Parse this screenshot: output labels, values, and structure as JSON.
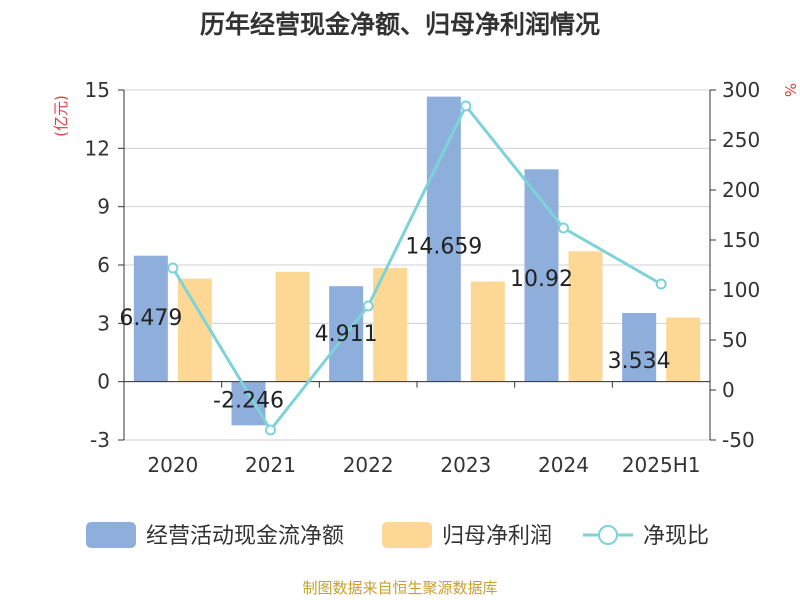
{
  "chart_data": {
    "type": "bar",
    "title": "历年经营现金净额、归母净利润情况",
    "ylabel_left": "(亿元)",
    "ylabel_right": "%",
    "categories": [
      "2020",
      "2021",
      "2022",
      "2023",
      "2024",
      "2025H1"
    ],
    "ylim_left": [
      -3,
      15
    ],
    "yticks_left": [
      "15",
      "12",
      "9",
      "6",
      "3",
      "0",
      "-3"
    ],
    "ylim_right": [
      -50,
      300
    ],
    "yticks_right": [
      "300",
      "250",
      "200",
      "150",
      "100",
      "50",
      "0",
      "-50"
    ],
    "series": [
      {
        "name": "经营活动现金流净额",
        "kind": "bar",
        "axis": "left",
        "color": "#8eaedc",
        "values": [
          6.479,
          -2.246,
          4.911,
          14.659,
          10.92,
          3.534
        ],
        "labels": [
          "6.479",
          "-2.246",
          "4.911",
          "14.659",
          "10.92",
          "3.534"
        ]
      },
      {
        "name": "归母净利润",
        "kind": "bar",
        "axis": "left",
        "color": "#fdd894",
        "values": [
          5.3,
          5.65,
          5.85,
          5.15,
          6.7,
          3.3
        ]
      },
      {
        "name": "净现比",
        "kind": "line",
        "axis": "right",
        "color": "#7dd3d8",
        "values": [
          122,
          -40,
          84,
          284,
          162,
          106
        ]
      }
    ],
    "grid": true,
    "legend_position": "bottom"
  },
  "footer": {
    "source": "制图数据来自恒生聚源数据库"
  }
}
